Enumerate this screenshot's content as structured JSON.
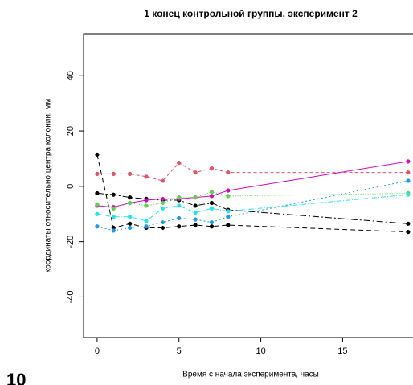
{
  "chart_data": {
    "type": "line",
    "title": "1 конец контрольной группы, эксперимент 2",
    "x_label": "Время с начала эксперимента, часы",
    "y_label": "координаты относительно центра колонии, мм",
    "corner_label": "10",
    "x": [
      0,
      1,
      2,
      3,
      4,
      5,
      6,
      7,
      8,
      19
    ],
    "xlim": [
      -0.83,
      19.3
    ],
    "xticks": [
      0,
      5,
      10,
      15
    ],
    "ylim": [
      -54.7,
      55.2
    ],
    "yticks": [
      -40,
      -20,
      0,
      20,
      40
    ],
    "series": [
      {
        "color": "#000000",
        "dash": "6,4",
        "values": [
          11.5,
          -15,
          -13.5,
          -15,
          -15,
          -14.5,
          -14,
          -14.5,
          -14,
          -16.5
        ]
      },
      {
        "color": "#000000",
        "dash": "8,3,2,3",
        "values": [
          -2.5,
          -3,
          -4,
          -4.5,
          -5,
          -5,
          -7,
          -6,
          -8.5,
          -13.5
        ]
      },
      {
        "color": "#DF536B",
        "dash": "4,3",
        "values": [
          4.5,
          4.5,
          4.5,
          3.5,
          2,
          8.5,
          5,
          6.5,
          5,
          5
        ]
      },
      {
        "color": "#CD0BBC",
        "dash": "none",
        "values": [
          -7,
          -7.5,
          -6,
          -5,
          -4.5,
          -4.5,
          -4,
          -3.5,
          -1.5,
          9
        ]
      },
      {
        "color": "#61D04F",
        "dash": "1,2",
        "values": [
          -6.5,
          -8,
          -6,
          -7,
          -6,
          -4,
          -4,
          -2,
          -3.5,
          -2.5
        ]
      },
      {
        "color": "#28E2E5",
        "dash": "6,2,1,2",
        "values": [
          -10,
          -11,
          -11,
          -12.5,
          -8,
          -7,
          -9.5,
          -8,
          -9,
          -3
        ]
      },
      {
        "color": "#2297E6",
        "dash": "2,3",
        "values": [
          -14.5,
          -16,
          -15,
          -14.5,
          -13,
          -11.5,
          -12,
          -13,
          -11,
          2
        ]
      }
    ]
  }
}
